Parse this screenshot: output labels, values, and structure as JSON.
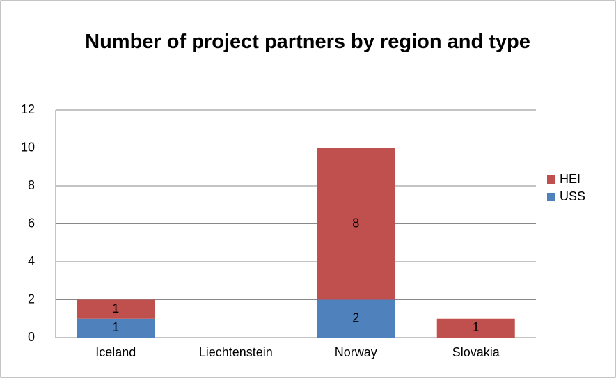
{
  "chart_data": {
    "type": "bar",
    "stacked": true,
    "title": "Number of project partners by region and type",
    "categories": [
      "Iceland",
      "Liechtenstein",
      "Norway",
      "Slovakia"
    ],
    "series": [
      {
        "name": "USS",
        "color": "#4f81bd",
        "values": [
          1,
          null,
          2,
          null
        ]
      },
      {
        "name": "HEI",
        "color": "#c0504d",
        "values": [
          1,
          null,
          8,
          1
        ]
      }
    ],
    "ylim": [
      0,
      12
    ],
    "yticks": [
      0,
      2,
      4,
      6,
      8,
      10,
      12
    ],
    "grid": true,
    "legend": "right"
  }
}
